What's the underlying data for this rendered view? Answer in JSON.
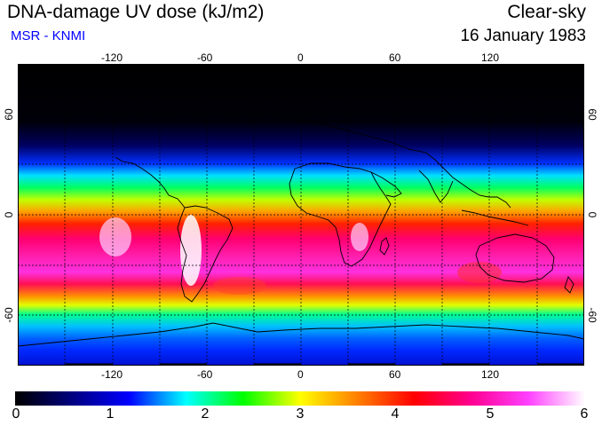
{
  "header": {
    "title": "DNA-damage UV dose (kJ/m2)",
    "subtitle": "MSR - KNMI",
    "condition": "Clear-sky",
    "date": "16 January 1983"
  },
  "map": {
    "projection": "equirectangular",
    "lon_ticks": [
      "-120",
      "-60",
      "0",
      "60",
      "120"
    ],
    "lat_ticks_left": [
      "60",
      "0",
      "-60"
    ],
    "lat_ticks_right": [
      "60",
      "0",
      "-60"
    ],
    "lon_range": [
      -180,
      180
    ],
    "lat_range": [
      -90,
      90
    ]
  },
  "colorbar": {
    "ticks": [
      "0",
      "1",
      "2",
      "3",
      "4",
      "5",
      "6"
    ],
    "min": 0,
    "max": 6,
    "colors": [
      "#000000",
      "#000080",
      "#0000ff",
      "#00ffff",
      "#00ff00",
      "#ffff00",
      "#ff8000",
      "#ff0000",
      "#ff0090",
      "#ff40ff",
      "#ffffff"
    ]
  }
}
